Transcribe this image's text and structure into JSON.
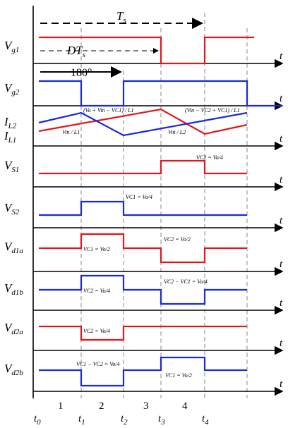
{
  "top": {
    "period": {
      "base": "T",
      "sub": "s"
    },
    "duty": {
      "base": "DT",
      "sub": "s"
    },
    "phase": "180°"
  },
  "signals": [
    {
      "base": "V",
      "sub": "g1"
    },
    {
      "base": "V",
      "sub": "g2"
    },
    {
      "base": "I",
      "sub": "L2"
    },
    {
      "base": "I",
      "sub": "L1"
    },
    {
      "base": "V",
      "sub": "S1"
    },
    {
      "base": "V",
      "sub": "S2"
    },
    {
      "base": "V",
      "sub": "d1a"
    },
    {
      "base": "V",
      "sub": "d1b"
    },
    {
      "base": "V",
      "sub": "d2a"
    },
    {
      "base": "V",
      "sub": "d2b"
    }
  ],
  "axis_label": "t",
  "annotations": [
    "(Vo + Vin − VC1) / L1",
    "(Vin − VC2 + VC1) / L1",
    "Vin / L1",
    "Vin / L2",
    "VC2 = Vo/4",
    "VC1 = Vo/4",
    "VC1 = Vo/2",
    "VC2 = Vo/4",
    "VC2 = Vo/2",
    "VC2 − VC1 = Vo/4",
    "VC2 = Vo/4",
    "VC1 − VC2 = Vo/4",
    "VC1 = Vo/2"
  ],
  "intervals": [
    "1",
    "2",
    "3",
    "4"
  ],
  "times": [
    {
      "base": "t",
      "sub": "0"
    },
    {
      "base": "t",
      "sub": "1"
    },
    {
      "base": "t",
      "sub": "2"
    },
    {
      "base": "t",
      "sub": "3"
    },
    {
      "base": "t",
      "sub": "4"
    }
  ]
}
